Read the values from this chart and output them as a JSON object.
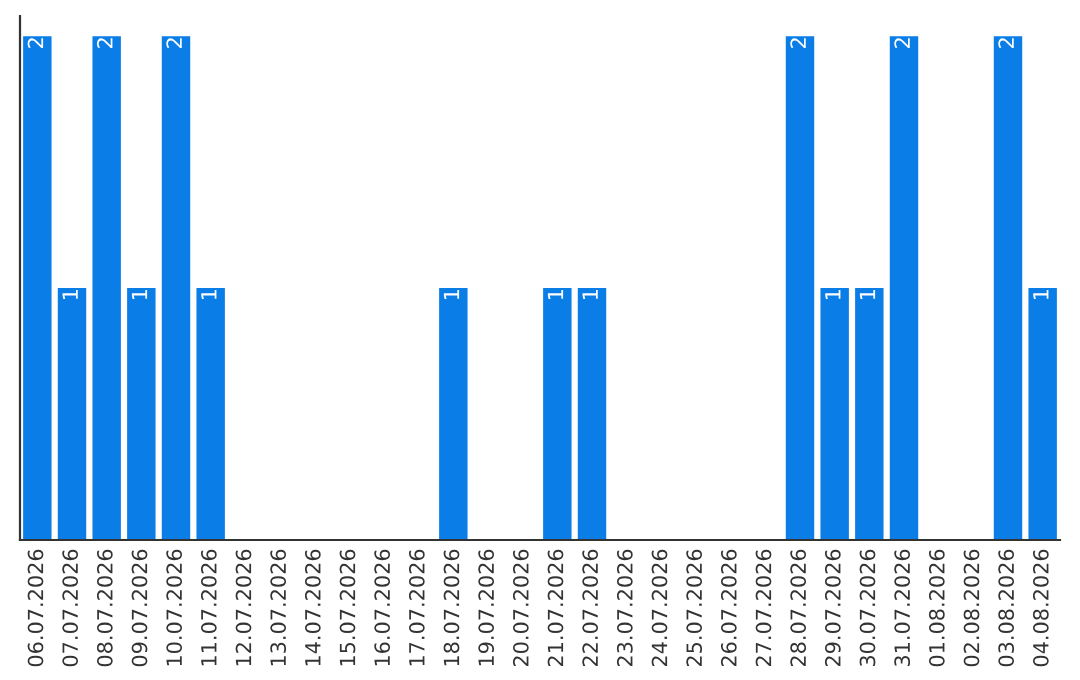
{
  "chart_data": {
    "type": "bar",
    "categories": [
      "06.07.2026",
      "07.07.2026",
      "08.07.2026",
      "09.07.2026",
      "10.07.2026",
      "11.07.2026",
      "12.07.2026",
      "13.07.2026",
      "14.07.2026",
      "15.07.2026",
      "16.07.2026",
      "17.07.2026",
      "18.07.2026",
      "19.07.2026",
      "20.07.2026",
      "21.07.2026",
      "22.07.2026",
      "23.07.2026",
      "24.07.2026",
      "25.07.2026",
      "26.07.2026",
      "27.07.2026",
      "28.07.2026",
      "29.07.2026",
      "30.07.2026",
      "31.07.2026",
      "01.08.2026",
      "02.08.2026",
      "03.08.2026",
      "04.08.2026"
    ],
    "values": [
      2,
      1,
      2,
      1,
      2,
      1,
      0,
      0,
      0,
      0,
      0,
      0,
      1,
      0,
      0,
      1,
      1,
      0,
      0,
      0,
      0,
      0,
      2,
      1,
      1,
      2,
      0,
      0,
      2,
      1
    ],
    "value_labels": [
      "2",
      "1",
      "2",
      "1",
      "2",
      "1",
      null,
      null,
      null,
      null,
      null,
      null,
      "1",
      null,
      null,
      "1",
      "1",
      null,
      null,
      null,
      null,
      null,
      "2",
      "1",
      "1",
      "2",
      null,
      null,
      "2",
      "1"
    ],
    "color": "#0a7de6",
    "grid": false,
    "legend": false
  }
}
